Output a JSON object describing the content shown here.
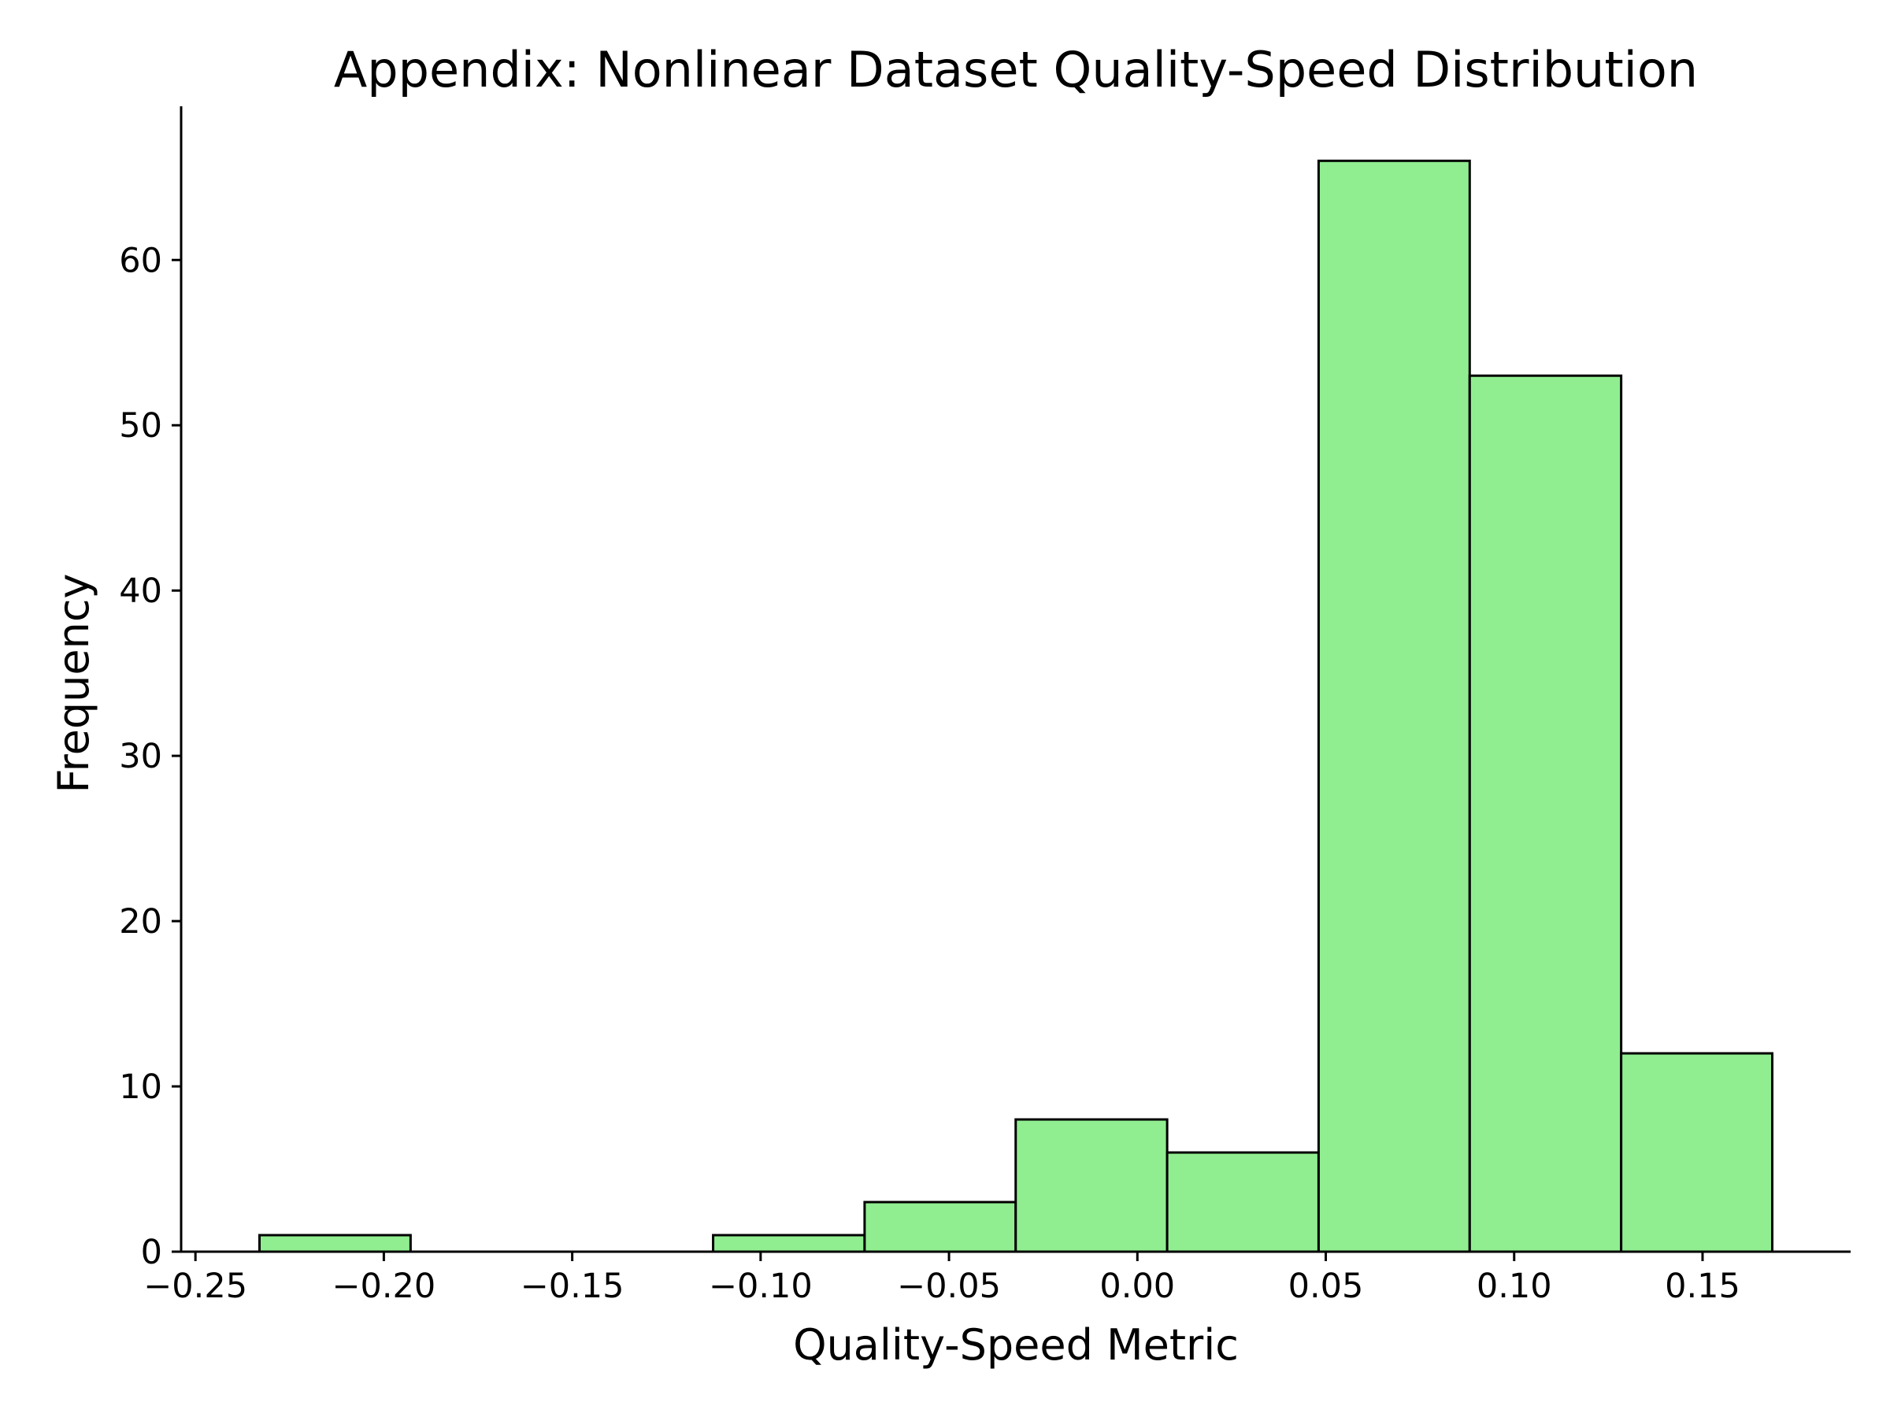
{
  "chart_data": {
    "type": "bar",
    "title": "Appendix: Nonlinear Dataset Quality-Speed Distribution",
    "xlabel": "Quality-Speed Metric",
    "ylabel": "Frequency",
    "bin_edges": [
      -0.233,
      -0.1929,
      -0.1527,
      -0.1126,
      -0.0724,
      -0.0323,
      0.0079,
      0.0481,
      0.0882,
      0.1284,
      0.1685
    ],
    "values": [
      1,
      0,
      0,
      1,
      3,
      8,
      6,
      66,
      53,
      12
    ],
    "xlim": [
      -0.2538,
      0.1893
    ],
    "ylim": [
      0,
      69.3
    ],
    "x_ticks": [
      -0.25,
      -0.2,
      -0.15,
      -0.1,
      -0.05,
      0.0,
      0.05,
      0.1,
      0.15
    ],
    "x_tick_labels": [
      "−0.25",
      "−0.20",
      "−0.15",
      "−0.10",
      "−0.05",
      "0.00",
      "0.05",
      "0.10",
      "0.15"
    ],
    "y_ticks": [
      0,
      10,
      20,
      30,
      40,
      50,
      60
    ],
    "y_tick_labels": [
      "0",
      "10",
      "20",
      "30",
      "40",
      "50",
      "60"
    ],
    "bar_color": "#90ee90",
    "edge_color": "#000000",
    "grid": false
  }
}
